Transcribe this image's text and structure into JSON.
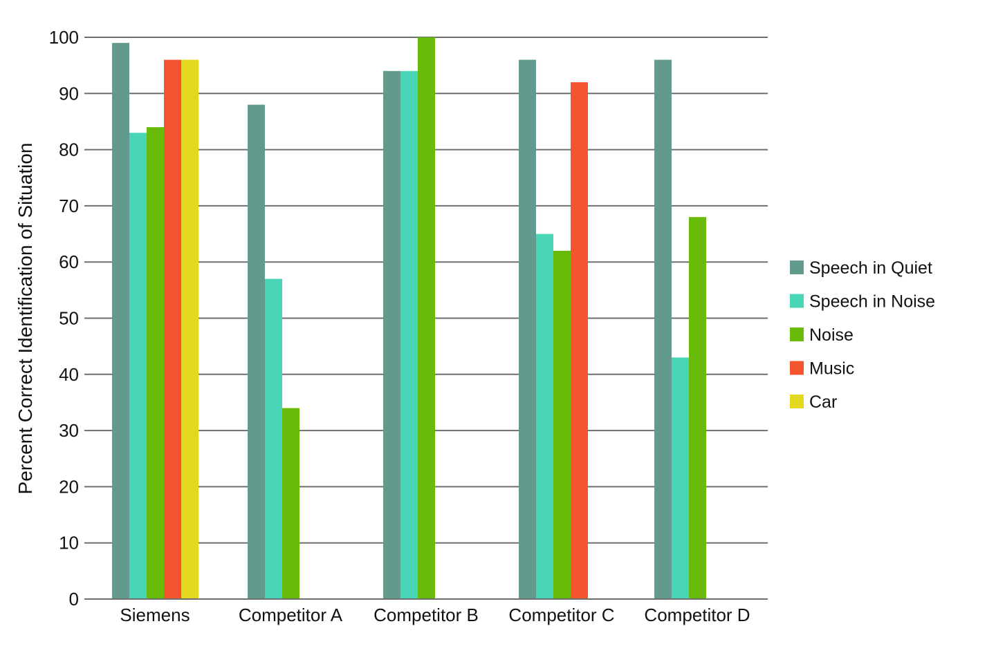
{
  "chart_data": {
    "type": "bar",
    "title": "",
    "xlabel": "",
    "ylabel": "Percent Correct Identification of Situation",
    "ylim": [
      0,
      100
    ],
    "yticks": [
      0,
      10,
      20,
      30,
      40,
      50,
      60,
      70,
      80,
      90,
      100
    ],
    "grid": true,
    "legend_position": "right",
    "categories": [
      "Siemens",
      "Competitor A",
      "Competitor B",
      "Competitor C",
      "Competitor D"
    ],
    "series": [
      {
        "name": "Speech in Quiet",
        "color": "#629a8e",
        "values": [
          99,
          88,
          94,
          96,
          96
        ]
      },
      {
        "name": "Speech in Noise",
        "color": "#4ad6b6",
        "values": [
          83,
          57,
          94,
          65,
          43
        ]
      },
      {
        "name": "Noise",
        "color": "#68bb08",
        "values": [
          84,
          34,
          100,
          62,
          68
        ]
      },
      {
        "name": "Music",
        "color": "#f4552e",
        "values": [
          96,
          null,
          null,
          92,
          null
        ]
      },
      {
        "name": "Car",
        "color": "#e3d71f",
        "values": [
          96,
          null,
          null,
          null,
          null
        ]
      }
    ]
  }
}
